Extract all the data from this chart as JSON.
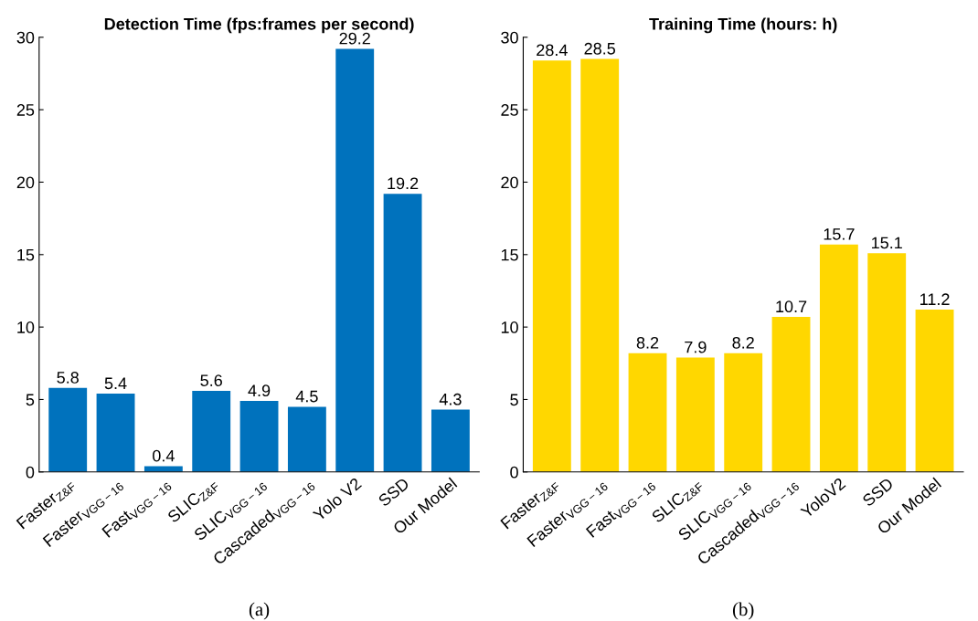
{
  "chart_data": [
    {
      "type": "bar",
      "title": "Detection Time (fps:frames per second)",
      "categories": [
        "Faster$_{Z&F}$",
        "Faster$_{VGG−16}$",
        "Fast$_{VGG−16}$",
        "SLIC$_{Z&F}$",
        "SLIC$_{VGG−16}$",
        "Cascaded$_{VGG−16}$",
        "Yolo V2",
        "SSD",
        "Our Model"
      ],
      "values": [
        5.8,
        5.4,
        0.4,
        5.6,
        4.9,
        4.5,
        29.2,
        19.2,
        4.3
      ],
      "color": "#0072bd",
      "data_labels": true,
      "ylim": [
        0,
        30
      ],
      "yticks": [
        0,
        5,
        10,
        15,
        20,
        25,
        30
      ],
      "grid": false,
      "annotations": [
        "(a)"
      ]
    },
    {
      "type": "bar",
      "title": "Training Time (hours: h)",
      "categories": [
        "Faster$_{Z&F}$",
        "Faster$_{VGG−16}$",
        "Fast$_{VGG−16}$",
        "SLIC$_{Z&F}$",
        "SLIC$_{VGG−16}$",
        "Cascaded$_{VGG−16}$",
        "YoloV2",
        "SSD",
        "Our Model"
      ],
      "values": [
        28.4,
        28.5,
        8.2,
        7.9,
        8.2,
        10.7,
        15.7,
        15.1,
        11.2
      ],
      "color": "#ffd700",
      "data_labels": true,
      "ylim": [
        0,
        30
      ],
      "yticks": [
        0,
        5,
        10,
        15,
        20,
        25,
        30
      ],
      "grid": false,
      "annotations": [
        "(b)"
      ]
    }
  ]
}
